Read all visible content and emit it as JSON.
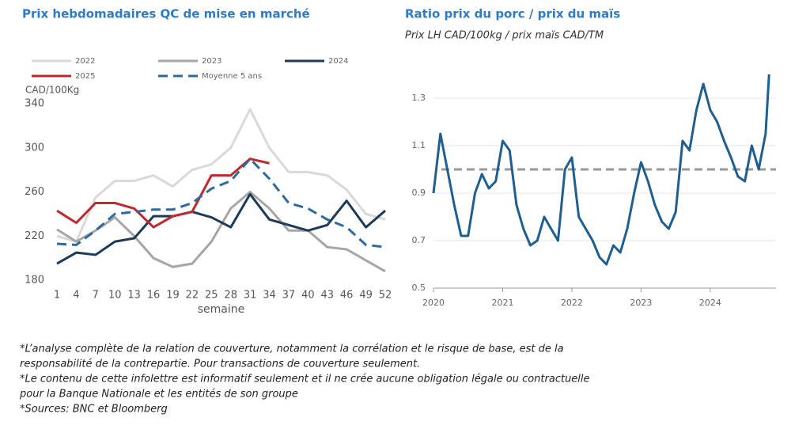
{
  "chart_data": [
    {
      "type": "line",
      "title": "Prix hebdomadaires QC de mise en marché",
      "ylabel": "CAD/100Kg",
      "xlabel": "semaine",
      "x": [
        1,
        4,
        7,
        10,
        13,
        16,
        19,
        22,
        25,
        28,
        31,
        34,
        37,
        40,
        43,
        46,
        49,
        52
      ],
      "series": [
        {
          "name": "2022",
          "color": "#d9d9d9",
          "values": [
            220,
            215,
            255,
            270,
            270,
            275,
            265,
            280,
            285,
            300,
            335,
            300,
            278,
            278,
            275,
            262,
            240,
            235
          ]
        },
        {
          "name": "2023",
          "color": "#a6a6a6",
          "values": [
            226,
            215,
            225,
            237,
            220,
            200,
            192,
            195,
            215,
            245,
            260,
            245,
            225,
            225,
            210,
            208,
            198,
            188
          ]
        },
        {
          "name": "2024",
          "color": "#1f3a56",
          "values": [
            195,
            205,
            203,
            215,
            218,
            238,
            238,
            242,
            237,
            228,
            258,
            235,
            230,
            225,
            230,
            252,
            228,
            243
          ]
        },
        {
          "name": "2025",
          "color": "#c0282d",
          "values": [
            243,
            232,
            250,
            250,
            245,
            228,
            238,
            242,
            275,
            275,
            290,
            286,
            null,
            null,
            null,
            null,
            null,
            null
          ]
        },
        {
          "name": "Moyenne 5 ans",
          "color": "#2e6a9c",
          "dash": true,
          "values": [
            213,
            212,
            225,
            240,
            242,
            244,
            244,
            250,
            263,
            270,
            290,
            272,
            250,
            245,
            235,
            228,
            212,
            210
          ]
        }
      ],
      "xlim": [
        1,
        52
      ],
      "xticks": [
        1,
        4,
        7,
        10,
        13,
        16,
        19,
        22,
        25,
        28,
        31,
        34,
        37,
        40,
        43,
        46,
        49,
        52
      ],
      "ylim": [
        180,
        340
      ],
      "yticks": [
        180,
        220,
        260,
        300,
        340
      ],
      "grid": false,
      "legend": "top"
    },
    {
      "type": "line",
      "title": "Ratio prix du porc / prix du maïs",
      "subtitle": "Prix LH CAD/100kg / prix maïs CAD/TM",
      "x": [
        2020.0,
        2020.1,
        2020.2,
        2020.3,
        2020.4,
        2020.5,
        2020.6,
        2020.7,
        2020.8,
        2020.9,
        2021.0,
        2021.1,
        2021.2,
        2021.3,
        2021.4,
        2021.5,
        2021.6,
        2021.7,
        2021.8,
        2021.9,
        2022.0,
        2022.1,
        2022.2,
        2022.3,
        2022.4,
        2022.5,
        2022.6,
        2022.7,
        2022.8,
        2022.9,
        2023.0,
        2023.1,
        2023.2,
        2023.3,
        2023.4,
        2023.5,
        2023.6,
        2023.7,
        2023.8,
        2023.9,
        2024.0,
        2024.1,
        2024.2,
        2024.3,
        2024.4,
        2024.5,
        2024.6,
        2024.7,
        2024.8,
        2024.85
      ],
      "values": [
        0.9,
        1.15,
        1.0,
        0.85,
        0.72,
        0.72,
        0.9,
        0.98,
        0.92,
        0.95,
        1.12,
        1.08,
        0.85,
        0.75,
        0.68,
        0.7,
        0.8,
        0.75,
        0.7,
        1.0,
        1.05,
        0.8,
        0.75,
        0.7,
        0.63,
        0.6,
        0.68,
        0.65,
        0.75,
        0.9,
        1.03,
        0.95,
        0.85,
        0.78,
        0.75,
        0.82,
        1.12,
        1.08,
        1.25,
        1.36,
        1.25,
        1.2,
        1.12,
        1.05,
        0.97,
        0.95,
        1.1,
        1.0,
        1.15,
        1.4
      ],
      "color": "#1f5f8f",
      "hline": 1.0,
      "hline_color": "#999999",
      "xlim": [
        2020,
        2024.95
      ],
      "xticks": [
        2020,
        2021,
        2022,
        2023,
        2024
      ],
      "ylim": [
        0.5,
        1.4
      ],
      "yticks": [
        0.5,
        0.7,
        0.9,
        1.1,
        1.3
      ],
      "grid": true
    }
  ],
  "notes": [
    "*L’analyse complète de la relation de couverture, notamment la corrélation et le risque de base, est de la",
    "responsabilité de la contrepartie. Pour transactions de couverture seulement.",
    "*Le contenu de cette infolettre est informatif seulement et il ne crée aucune obligation légale ou contractuelle",
    "pour la Banque Nationale et les entités de son groupe",
    "*Sources: BNC et Bloomberg"
  ]
}
